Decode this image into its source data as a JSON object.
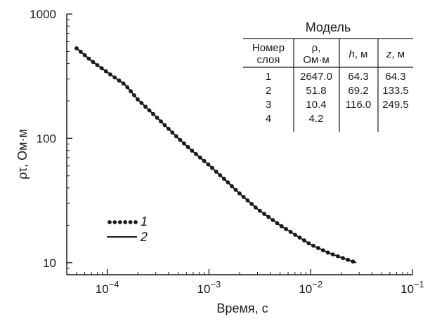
{
  "chart_data": {
    "type": "line",
    "xscale": "log",
    "yscale": "log",
    "xlim": [
      4e-05,
      0.1
    ],
    "ylim": [
      8,
      1000
    ],
    "xlabel": "Время, с",
    "ylabel": "ρτ, Ом·м",
    "xticks": [
      {
        "value": 0.0001,
        "base": "10",
        "exp": "−4"
      },
      {
        "value": 0.001,
        "base": "10",
        "exp": "−3"
      },
      {
        "value": 0.01,
        "base": "10",
        "exp": "−2"
      },
      {
        "value": 0.1,
        "base": "10",
        "exp": "−1"
      }
    ],
    "yticks": [
      {
        "value": 10,
        "label": "10"
      },
      {
        "value": 100,
        "label": "100"
      },
      {
        "value": 1000,
        "label": "1000"
      }
    ],
    "series": [
      {
        "name": "1",
        "style": "dotted",
        "x": [
          5e-05,
          7e-05,
          0.0001,
          0.00015,
          0.0002,
          0.0003,
          0.0005,
          0.0007,
          0.001,
          0.0015,
          0.002,
          0.003,
          0.005,
          0.007,
          0.01,
          0.015,
          0.02,
          0.028
        ],
        "y": [
          530,
          420,
          340,
          270,
          205,
          150,
          100,
          78,
          61,
          45,
          36,
          27,
          20,
          16.8,
          14,
          12,
          11,
          10
        ]
      },
      {
        "name": "2",
        "style": "solid",
        "x": [
          5e-05,
          7e-05,
          0.0001,
          0.00015,
          0.0002,
          0.0003,
          0.0005,
          0.0007,
          0.001,
          0.0015,
          0.002,
          0.003,
          0.005,
          0.007,
          0.01,
          0.015,
          0.02,
          0.028
        ],
        "y": [
          530,
          420,
          340,
          270,
          205,
          150,
          100,
          78,
          61,
          45,
          36,
          27,
          20,
          16.8,
          14,
          12,
          11,
          10
        ]
      }
    ],
    "legend": {
      "position": "bottom-left",
      "entries": [
        {
          "label": "1",
          "style": "dotted"
        },
        {
          "label": "2",
          "style": "solid"
        }
      ]
    },
    "grid": false
  },
  "model_table": {
    "title": "Модель",
    "header": {
      "layer_line1": "Номер",
      "layer_line2": "слоя",
      "rho_line1": "ρ,",
      "rho_line2": "Ом·м",
      "h_var": "h",
      "h_unit": ", м",
      "z_var": "z",
      "z_unit": ", м"
    },
    "rows": [
      {
        "layer": "1",
        "rho": "2647.0",
        "h": "64.3",
        "z": "64.3"
      },
      {
        "layer": "2",
        "rho": "51.8",
        "h": "69.2",
        "z": "133.5"
      },
      {
        "layer": "3",
        "rho": "10.4",
        "h": "116.0",
        "z": "249.5"
      },
      {
        "layer": "4",
        "rho": "4.2",
        "h": "",
        "z": ""
      }
    ]
  },
  "colors": {
    "ink": "#1a1a1a",
    "background": "#ffffff"
  }
}
